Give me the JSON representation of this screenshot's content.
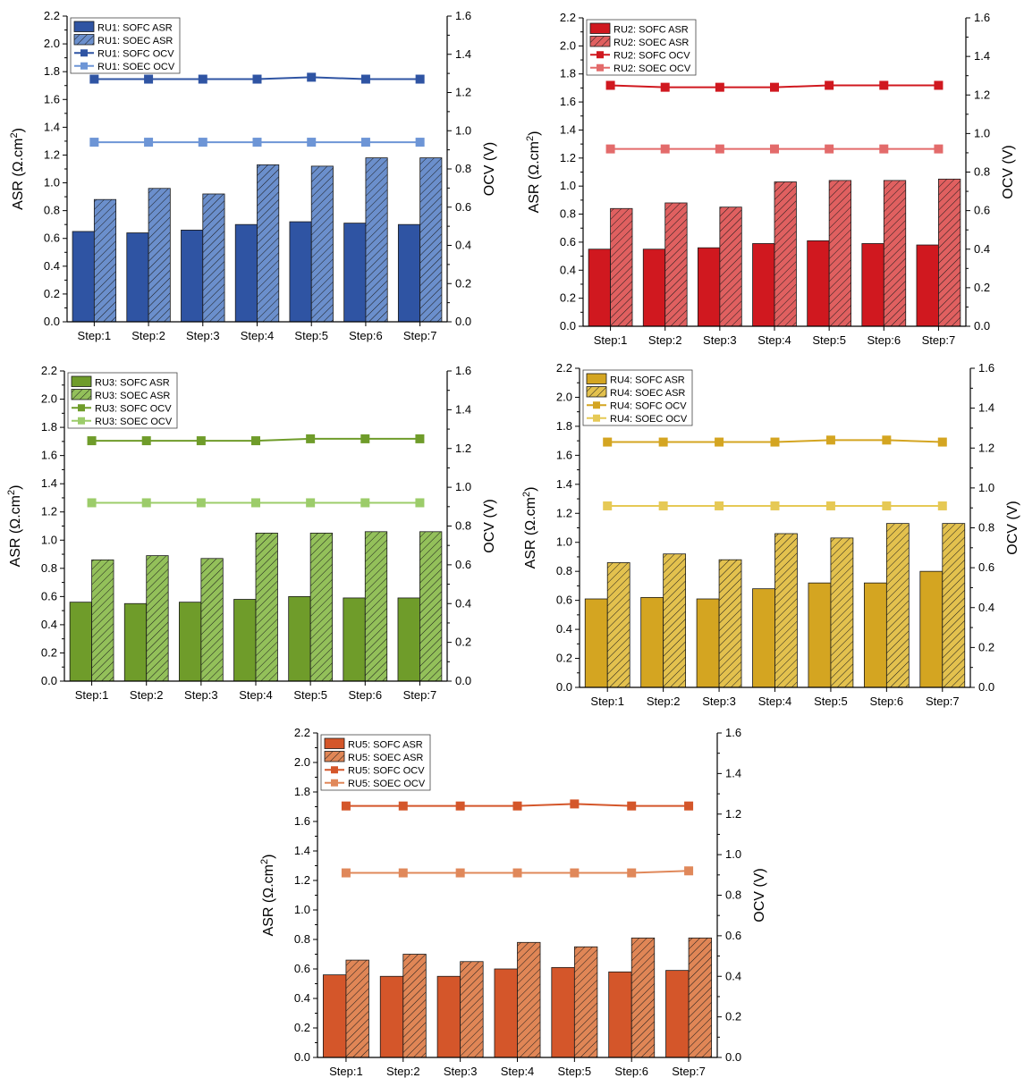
{
  "chart_data": [
    {
      "type": "bar",
      "id": "RU1",
      "colors": {
        "sofc_bar": "#2f54a3",
        "soec_bar": "#6b8fcc",
        "sofc_line": "#2f54a3",
        "soec_line": "#6d95d6"
      },
      "categories": [
        "Step:1",
        "Step:2",
        "Step:3",
        "Step:4",
        "Step:5",
        "Step:6",
        "Step:7"
      ],
      "series": [
        {
          "name": "RU1: SOFC ASR",
          "kind": "bar",
          "axis": "left",
          "hatch": false,
          "values": [
            0.65,
            0.64,
            0.66,
            0.7,
            0.72,
            0.71,
            0.7
          ]
        },
        {
          "name": "RU1: SOEC ASR",
          "kind": "bar",
          "axis": "left",
          "hatch": true,
          "values": [
            0.88,
            0.96,
            0.92,
            1.13,
            1.12,
            1.18,
            1.18
          ]
        },
        {
          "name": "RU1: SOFC OCV",
          "kind": "line",
          "axis": "right",
          "values": [
            1.27,
            1.27,
            1.27,
            1.27,
            1.28,
            1.27,
            1.27
          ]
        },
        {
          "name": "RU1: SOEC OCV",
          "kind": "line",
          "axis": "right",
          "values": [
            0.94,
            0.94,
            0.94,
            0.94,
            0.94,
            0.94,
            0.94
          ]
        }
      ],
      "ylabel": "ASR (Ω.cm2)",
      "y2label": "OCV (V)",
      "ylim": [
        0,
        2.2
      ],
      "y2lim": [
        0,
        1.6
      ],
      "yticks": [
        "0.0",
        "0.2",
        "0.4",
        "0.6",
        "0.8",
        "1.0",
        "1.2",
        "1.4",
        "1.6",
        "1.8",
        "2.0",
        "2.2"
      ],
      "y2ticks": [
        "0.0",
        "0.2",
        "0.4",
        "0.6",
        "0.8",
        "1.0",
        "1.2",
        "1.4",
        "1.6"
      ],
      "legend": "top-left",
      "grid": false
    },
    {
      "type": "bar",
      "id": "RU2",
      "colors": {
        "sofc_bar": "#d0181f",
        "soec_bar": "#e06060",
        "sofc_line": "#d0181f",
        "soec_line": "#e36b6b"
      },
      "categories": [
        "Step:1",
        "Step:2",
        "Step:3",
        "Step:4",
        "Step:5",
        "Step:6",
        "Step:7"
      ],
      "series": [
        {
          "name": "RU2: SOFC ASR",
          "kind": "bar",
          "axis": "left",
          "hatch": false,
          "values": [
            0.55,
            0.55,
            0.56,
            0.59,
            0.61,
            0.59,
            0.58
          ]
        },
        {
          "name": "RU2: SOEC ASR",
          "kind": "bar",
          "axis": "left",
          "hatch": true,
          "values": [
            0.84,
            0.88,
            0.85,
            1.03,
            1.04,
            1.04,
            1.05
          ]
        },
        {
          "name": "RU2: SOFC OCV",
          "kind": "line",
          "axis": "right",
          "values": [
            1.25,
            1.24,
            1.24,
            1.24,
            1.25,
            1.25,
            1.25
          ]
        },
        {
          "name": "RU2: SOEC OCV",
          "kind": "line",
          "axis": "right",
          "values": [
            0.92,
            0.92,
            0.92,
            0.92,
            0.92,
            0.92,
            0.92
          ]
        }
      ],
      "ylabel": "ASR (Ω.cm2)",
      "y2label": "OCV (V)",
      "ylim": [
        0,
        2.2
      ],
      "y2lim": [
        0,
        1.6
      ],
      "yticks": [
        "0.0",
        "0.2",
        "0.4",
        "0.6",
        "0.8",
        "1.0",
        "1.2",
        "1.4",
        "1.6",
        "1.8",
        "2.0",
        "2.2"
      ],
      "y2ticks": [
        "0.0",
        "0.2",
        "0.4",
        "0.6",
        "0.8",
        "1.0",
        "1.2",
        "1.4",
        "1.6"
      ],
      "legend": "top-left",
      "grid": false
    },
    {
      "type": "bar",
      "id": "RU3",
      "colors": {
        "sofc_bar": "#6f9c2a",
        "soec_bar": "#93c05a",
        "sofc_line": "#6f9c2a",
        "soec_line": "#9ccc6a"
      },
      "categories": [
        "Step:1",
        "Step:2",
        "Step:3",
        "Step:4",
        "Step:5",
        "Step:6",
        "Step:7"
      ],
      "series": [
        {
          "name": "RU3: SOFC ASR",
          "kind": "bar",
          "axis": "left",
          "hatch": false,
          "values": [
            0.56,
            0.55,
            0.56,
            0.58,
            0.6,
            0.59,
            0.59
          ]
        },
        {
          "name": "RU3: SOEC ASR",
          "kind": "bar",
          "axis": "left",
          "hatch": true,
          "values": [
            0.86,
            0.89,
            0.87,
            1.05,
            1.05,
            1.06,
            1.06
          ]
        },
        {
          "name": "RU3: SOFC OCV",
          "kind": "line",
          "axis": "right",
          "values": [
            1.24,
            1.24,
            1.24,
            1.24,
            1.25,
            1.25,
            1.25
          ]
        },
        {
          "name": "RU3: SOEC OCV",
          "kind": "line",
          "axis": "right",
          "values": [
            0.92,
            0.92,
            0.92,
            0.92,
            0.92,
            0.92,
            0.92
          ]
        }
      ],
      "ylabel": "ASR (Ω.cm2)",
      "y2label": "OCV (V)",
      "ylim": [
        0,
        2.2
      ],
      "y2lim": [
        0,
        1.6
      ],
      "yticks": [
        "0.0",
        "0.2",
        "0.4",
        "0.6",
        "0.8",
        "1.0",
        "1.2",
        "1.4",
        "1.6",
        "1.8",
        "2.0",
        "2.2"
      ],
      "y2ticks": [
        "0.0",
        "0.2",
        "0.4",
        "0.6",
        "0.8",
        "1.0",
        "1.2",
        "1.4",
        "1.6"
      ],
      "legend": "top-left",
      "grid": false
    },
    {
      "type": "bar",
      "id": "RU4",
      "colors": {
        "sofc_bar": "#d4a521",
        "soec_bar": "#e3c14e",
        "sofc_line": "#d4a521",
        "soec_line": "#e6c955"
      },
      "categories": [
        "Step:1",
        "Step:2",
        "Step:3",
        "Step:4",
        "Step:5",
        "Step:6",
        "Step:7"
      ],
      "series": [
        {
          "name": "RU4: SOFC ASR",
          "kind": "bar",
          "axis": "left",
          "hatch": false,
          "values": [
            0.61,
            0.62,
            0.61,
            0.68,
            0.72,
            0.72,
            0.8
          ]
        },
        {
          "name": "RU4: SOEC ASR",
          "kind": "bar",
          "axis": "left",
          "hatch": true,
          "values": [
            0.86,
            0.92,
            0.88,
            1.06,
            1.03,
            1.13,
            1.13
          ]
        },
        {
          "name": "RU4: SOFC OCV",
          "kind": "line",
          "axis": "right",
          "values": [
            1.23,
            1.23,
            1.23,
            1.23,
            1.24,
            1.24,
            1.23
          ]
        },
        {
          "name": "RU4: SOEC OCV",
          "kind": "line",
          "axis": "right",
          "values": [
            0.91,
            0.91,
            0.91,
            0.91,
            0.91,
            0.91,
            0.91
          ]
        }
      ],
      "ylabel": "ASR (Ω.cm2)",
      "y2label": "OCV (V)",
      "ylim": [
        0,
        2.2
      ],
      "y2lim": [
        0,
        1.6
      ],
      "yticks": [
        "0.0",
        "0.2",
        "0.4",
        "0.6",
        "0.8",
        "1.0",
        "1.2",
        "1.4",
        "1.6",
        "1.8",
        "2.0",
        "2.2"
      ],
      "y2ticks": [
        "0.0",
        "0.2",
        "0.4",
        "0.6",
        "0.8",
        "1.0",
        "1.2",
        "1.4",
        "1.6"
      ],
      "legend": "top-left",
      "grid": false
    },
    {
      "type": "bar",
      "id": "RU5",
      "colors": {
        "sofc_bar": "#d4562a",
        "soec_bar": "#e08656",
        "sofc_line": "#d4562a",
        "soec_line": "#e0885a"
      },
      "categories": [
        "Step:1",
        "Step:2",
        "Step:3",
        "Step:4",
        "Step:5",
        "Step:6",
        "Step:7"
      ],
      "series": [
        {
          "name": "RU5: SOFC ASR",
          "kind": "bar",
          "axis": "left",
          "hatch": false,
          "values": [
            0.56,
            0.55,
            0.55,
            0.6,
            0.61,
            0.58,
            0.59
          ]
        },
        {
          "name": "RU5: SOEC ASR",
          "kind": "bar",
          "axis": "left",
          "hatch": true,
          "values": [
            0.66,
            0.7,
            0.65,
            0.78,
            0.75,
            0.81,
            0.81
          ]
        },
        {
          "name": "RU5: SOFC OCV",
          "kind": "line",
          "axis": "right",
          "values": [
            1.24,
            1.24,
            1.24,
            1.24,
            1.25,
            1.24,
            1.24
          ]
        },
        {
          "name": "RU5: SOEC OCV",
          "kind": "line",
          "axis": "right",
          "values": [
            0.91,
            0.91,
            0.91,
            0.91,
            0.91,
            0.91,
            0.92
          ]
        }
      ],
      "ylabel": "ASR (Ω.cm2)",
      "y2label": "OCV (V)",
      "ylim": [
        0,
        2.2
      ],
      "y2lim": [
        0,
        1.6
      ],
      "yticks": [
        "0.0",
        "0.2",
        "0.4",
        "0.6",
        "0.8",
        "1.0",
        "1.2",
        "1.4",
        "1.6",
        "1.8",
        "2.0",
        "2.2"
      ],
      "y2ticks": [
        "0.0",
        "0.2",
        "0.4",
        "0.6",
        "0.8",
        "1.0",
        "1.2",
        "1.4",
        "1.6"
      ],
      "legend": "top-left",
      "grid": false
    }
  ]
}
